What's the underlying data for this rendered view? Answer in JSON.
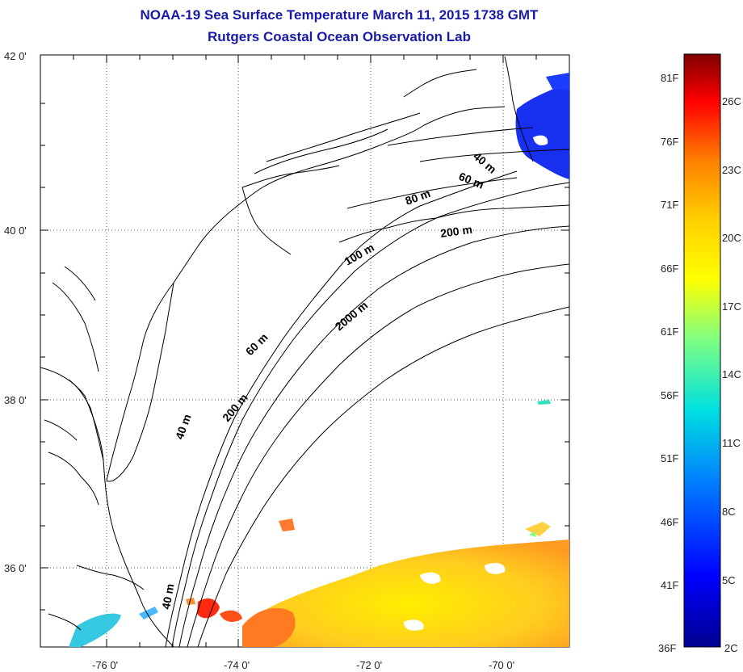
{
  "title": "NOAA-19 Sea Surface Temperature March 11, 2015 1738 GMT",
  "subtitle": "Rutgers Coastal Ocean Observation Lab",
  "axes": {
    "lat_ticks": [
      "42 0'",
      "40 0'",
      "38 0'",
      "36 0'"
    ],
    "lon_ticks": [
      "-76 0'",
      "-74 0'",
      "-72 0'",
      "-70 0'"
    ]
  },
  "contours": [
    "40 m",
    "60 m",
    "80 m",
    "200 m",
    "100 m",
    "2000 m",
    "60 m",
    "200 m",
    "40 m",
    "40 m"
  ],
  "colorbar": {
    "fahrenheit": [
      "81F",
      "76F",
      "71F",
      "66F",
      "61F",
      "56F",
      "51F",
      "46F",
      "41F",
      "36F"
    ],
    "celsius": [
      "26C",
      "23C",
      "20C",
      "17C",
      "14C",
      "11C",
      "8C",
      "5C",
      "2C"
    ],
    "colors": [
      "#800000",
      "#ff0000",
      "#ff8000",
      "#ffd000",
      "#ffff00",
      "#80ff80",
      "#00e0e0",
      "#0080ff",
      "#0000ff",
      "#00008f"
    ]
  }
}
